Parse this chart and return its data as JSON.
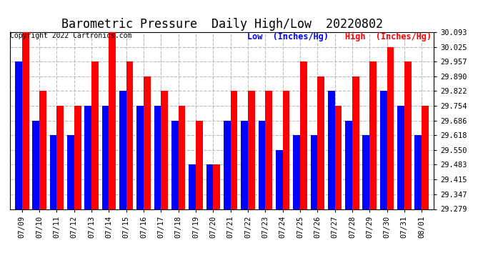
{
  "title": "Barometric Pressure  Daily High/Low  20220802",
  "copyright": "Copyright 2022 Cartronics.com",
  "legend_low": "Low  (Inches/Hg)",
  "legend_high": "High  (Inches/Hg)",
  "dates": [
    "07/09",
    "07/10",
    "07/11",
    "07/12",
    "07/13",
    "07/14",
    "07/15",
    "07/16",
    "07/17",
    "07/18",
    "07/19",
    "07/20",
    "07/21",
    "07/22",
    "07/23",
    "07/24",
    "07/25",
    "07/26",
    "07/27",
    "07/28",
    "07/29",
    "07/30",
    "07/31",
    "08/01"
  ],
  "low": [
    29.957,
    29.686,
    29.618,
    29.618,
    29.754,
    29.754,
    29.822,
    29.754,
    29.754,
    29.686,
    29.483,
    29.483,
    29.686,
    29.686,
    29.686,
    29.55,
    29.618,
    29.618,
    29.822,
    29.686,
    29.618,
    29.822,
    29.754,
    29.618
  ],
  "high": [
    30.093,
    29.822,
    29.754,
    29.754,
    29.957,
    30.093,
    29.957,
    29.89,
    29.822,
    29.754,
    29.686,
    29.483,
    29.822,
    29.822,
    29.822,
    29.822,
    29.957,
    29.89,
    29.754,
    29.89,
    29.957,
    30.025,
    29.957,
    29.754
  ],
  "ylim_min": 29.279,
  "ylim_max": 30.093,
  "yticks": [
    29.279,
    29.347,
    29.415,
    29.483,
    29.55,
    29.618,
    29.686,
    29.754,
    29.822,
    29.89,
    29.957,
    30.025,
    30.093
  ],
  "bar_width": 0.4,
  "low_color": "#0000ff",
  "high_color": "#ff0000",
  "background_color": "#ffffff",
  "grid_color": "#aaaaaa",
  "title_fontsize": 12,
  "tick_fontsize": 7.5,
  "copyright_fontsize": 7,
  "legend_fontsize": 8.5
}
